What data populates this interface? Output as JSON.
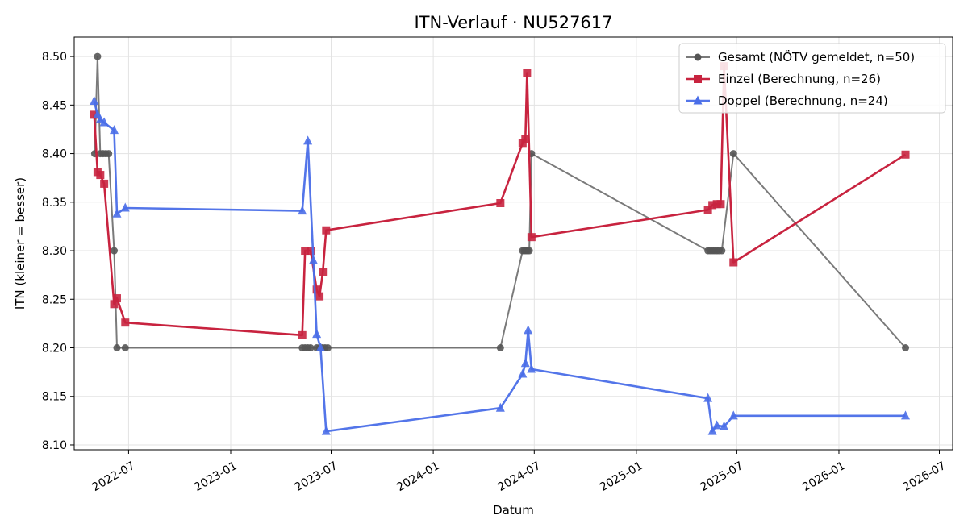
{
  "chart_data": {
    "type": "line",
    "title": "ITN-Verlauf · NU527617",
    "xlabel": "Datum",
    "ylabel": "ITN  (kleiner = besser)",
    "x_axis_type": "date",
    "xlim": [
      "2022-03-25",
      "2026-07-25"
    ],
    "ylim": [
      8.095,
      8.52
    ],
    "x_ticks": [
      "2022-07",
      "2023-01",
      "2023-07",
      "2024-01",
      "2024-07",
      "2025-01",
      "2025-07",
      "2026-01",
      "2026-07"
    ],
    "y_ticks": [
      "8.10",
      "8.15",
      "8.20",
      "8.25",
      "8.30",
      "8.35",
      "8.40",
      "8.45",
      "8.50"
    ],
    "grid": true,
    "legend_position": "top-right",
    "series": [
      {
        "name": "Gesamt (NÖTV gemeldet, n=50)",
        "color": "#555555",
        "marker": "circle",
        "points": [
          [
            "2022-05-01",
            8.4
          ],
          [
            "2022-05-06",
            8.5
          ],
          [
            "2022-05-11",
            8.4
          ],
          [
            "2022-05-16",
            8.4
          ],
          [
            "2022-05-21",
            8.4
          ],
          [
            "2022-05-26",
            8.4
          ],
          [
            "2022-06-05",
            8.3
          ],
          [
            "2022-06-10",
            8.2
          ],
          [
            "2022-06-25",
            8.2
          ],
          [
            "2023-05-10",
            8.2
          ],
          [
            "2023-05-15",
            8.2
          ],
          [
            "2023-05-20",
            8.2
          ],
          [
            "2023-05-25",
            8.2
          ],
          [
            "2023-06-05",
            8.2
          ],
          [
            "2023-06-10",
            8.2
          ],
          [
            "2023-06-15",
            8.2
          ],
          [
            "2023-06-20",
            8.2
          ],
          [
            "2023-06-25",
            8.2
          ],
          [
            "2024-05-01",
            8.2
          ],
          [
            "2024-06-10",
            8.3
          ],
          [
            "2024-06-13",
            8.3
          ],
          [
            "2024-06-16",
            8.3
          ],
          [
            "2024-06-19",
            8.3
          ],
          [
            "2024-06-22",
            8.3
          ],
          [
            "2024-06-26",
            8.4
          ],
          [
            "2025-05-10",
            8.3
          ],
          [
            "2025-05-14",
            8.3
          ],
          [
            "2025-05-18",
            8.3
          ],
          [
            "2025-05-22",
            8.3
          ],
          [
            "2025-05-26",
            8.3
          ],
          [
            "2025-05-30",
            8.3
          ],
          [
            "2025-06-04",
            8.3
          ],
          [
            "2025-06-25",
            8.4
          ],
          [
            "2026-05-01",
            8.2
          ]
        ]
      },
      {
        "name": "Einzel (Berechnung, n=26)",
        "color": "#c8233f",
        "marker": "square",
        "points": [
          [
            "2022-04-30",
            8.44
          ],
          [
            "2022-05-06",
            8.381
          ],
          [
            "2022-05-11",
            8.378
          ],
          [
            "2022-05-18",
            8.369
          ],
          [
            "2022-06-05",
            8.245
          ],
          [
            "2022-06-10",
            8.251
          ],
          [
            "2022-06-25",
            8.226
          ],
          [
            "2023-05-10",
            8.213
          ],
          [
            "2023-05-15",
            8.3
          ],
          [
            "2023-05-25",
            8.3
          ],
          [
            "2023-06-05",
            8.26
          ],
          [
            "2023-06-10",
            8.253
          ],
          [
            "2023-06-16",
            8.278
          ],
          [
            "2023-06-22",
            8.321
          ],
          [
            "2024-05-01",
            8.349
          ],
          [
            "2024-06-10",
            8.411
          ],
          [
            "2024-06-15",
            8.415
          ],
          [
            "2024-06-18",
            8.483
          ],
          [
            "2024-06-26",
            8.314
          ],
          [
            "2025-05-10",
            8.342
          ],
          [
            "2025-05-18",
            8.347
          ],
          [
            "2025-05-26",
            8.348
          ],
          [
            "2025-06-02",
            8.348
          ],
          [
            "2025-06-08",
            8.49
          ],
          [
            "2025-06-25",
            8.288
          ],
          [
            "2026-05-01",
            8.399
          ]
        ]
      },
      {
        "name": "Doppel (Berechnung, n=24)",
        "color": "#4a6ee8",
        "marker": "triangle",
        "points": [
          [
            "2022-04-30",
            8.454
          ],
          [
            "2022-05-06",
            8.44
          ],
          [
            "2022-05-11",
            8.435
          ],
          [
            "2022-05-18",
            8.432
          ],
          [
            "2022-06-05",
            8.424
          ],
          [
            "2022-06-10",
            8.338
          ],
          [
            "2022-06-25",
            8.344
          ],
          [
            "2023-05-10",
            8.341
          ],
          [
            "2023-05-20",
            8.413
          ],
          [
            "2023-05-30",
            8.29
          ],
          [
            "2023-06-05",
            8.214
          ],
          [
            "2023-06-12",
            8.2
          ],
          [
            "2023-06-22",
            8.114
          ],
          [
            "2024-05-01",
            8.138
          ],
          [
            "2024-06-10",
            8.173
          ],
          [
            "2024-06-15",
            8.184
          ],
          [
            "2024-06-20",
            8.218
          ],
          [
            "2024-06-26",
            8.178
          ],
          [
            "2025-05-10",
            8.148
          ],
          [
            "2025-05-18",
            8.114
          ],
          [
            "2025-05-26",
            8.12
          ],
          [
            "2025-06-08",
            8.119
          ],
          [
            "2025-06-25",
            8.13
          ],
          [
            "2026-05-01",
            8.13
          ]
        ]
      }
    ]
  }
}
